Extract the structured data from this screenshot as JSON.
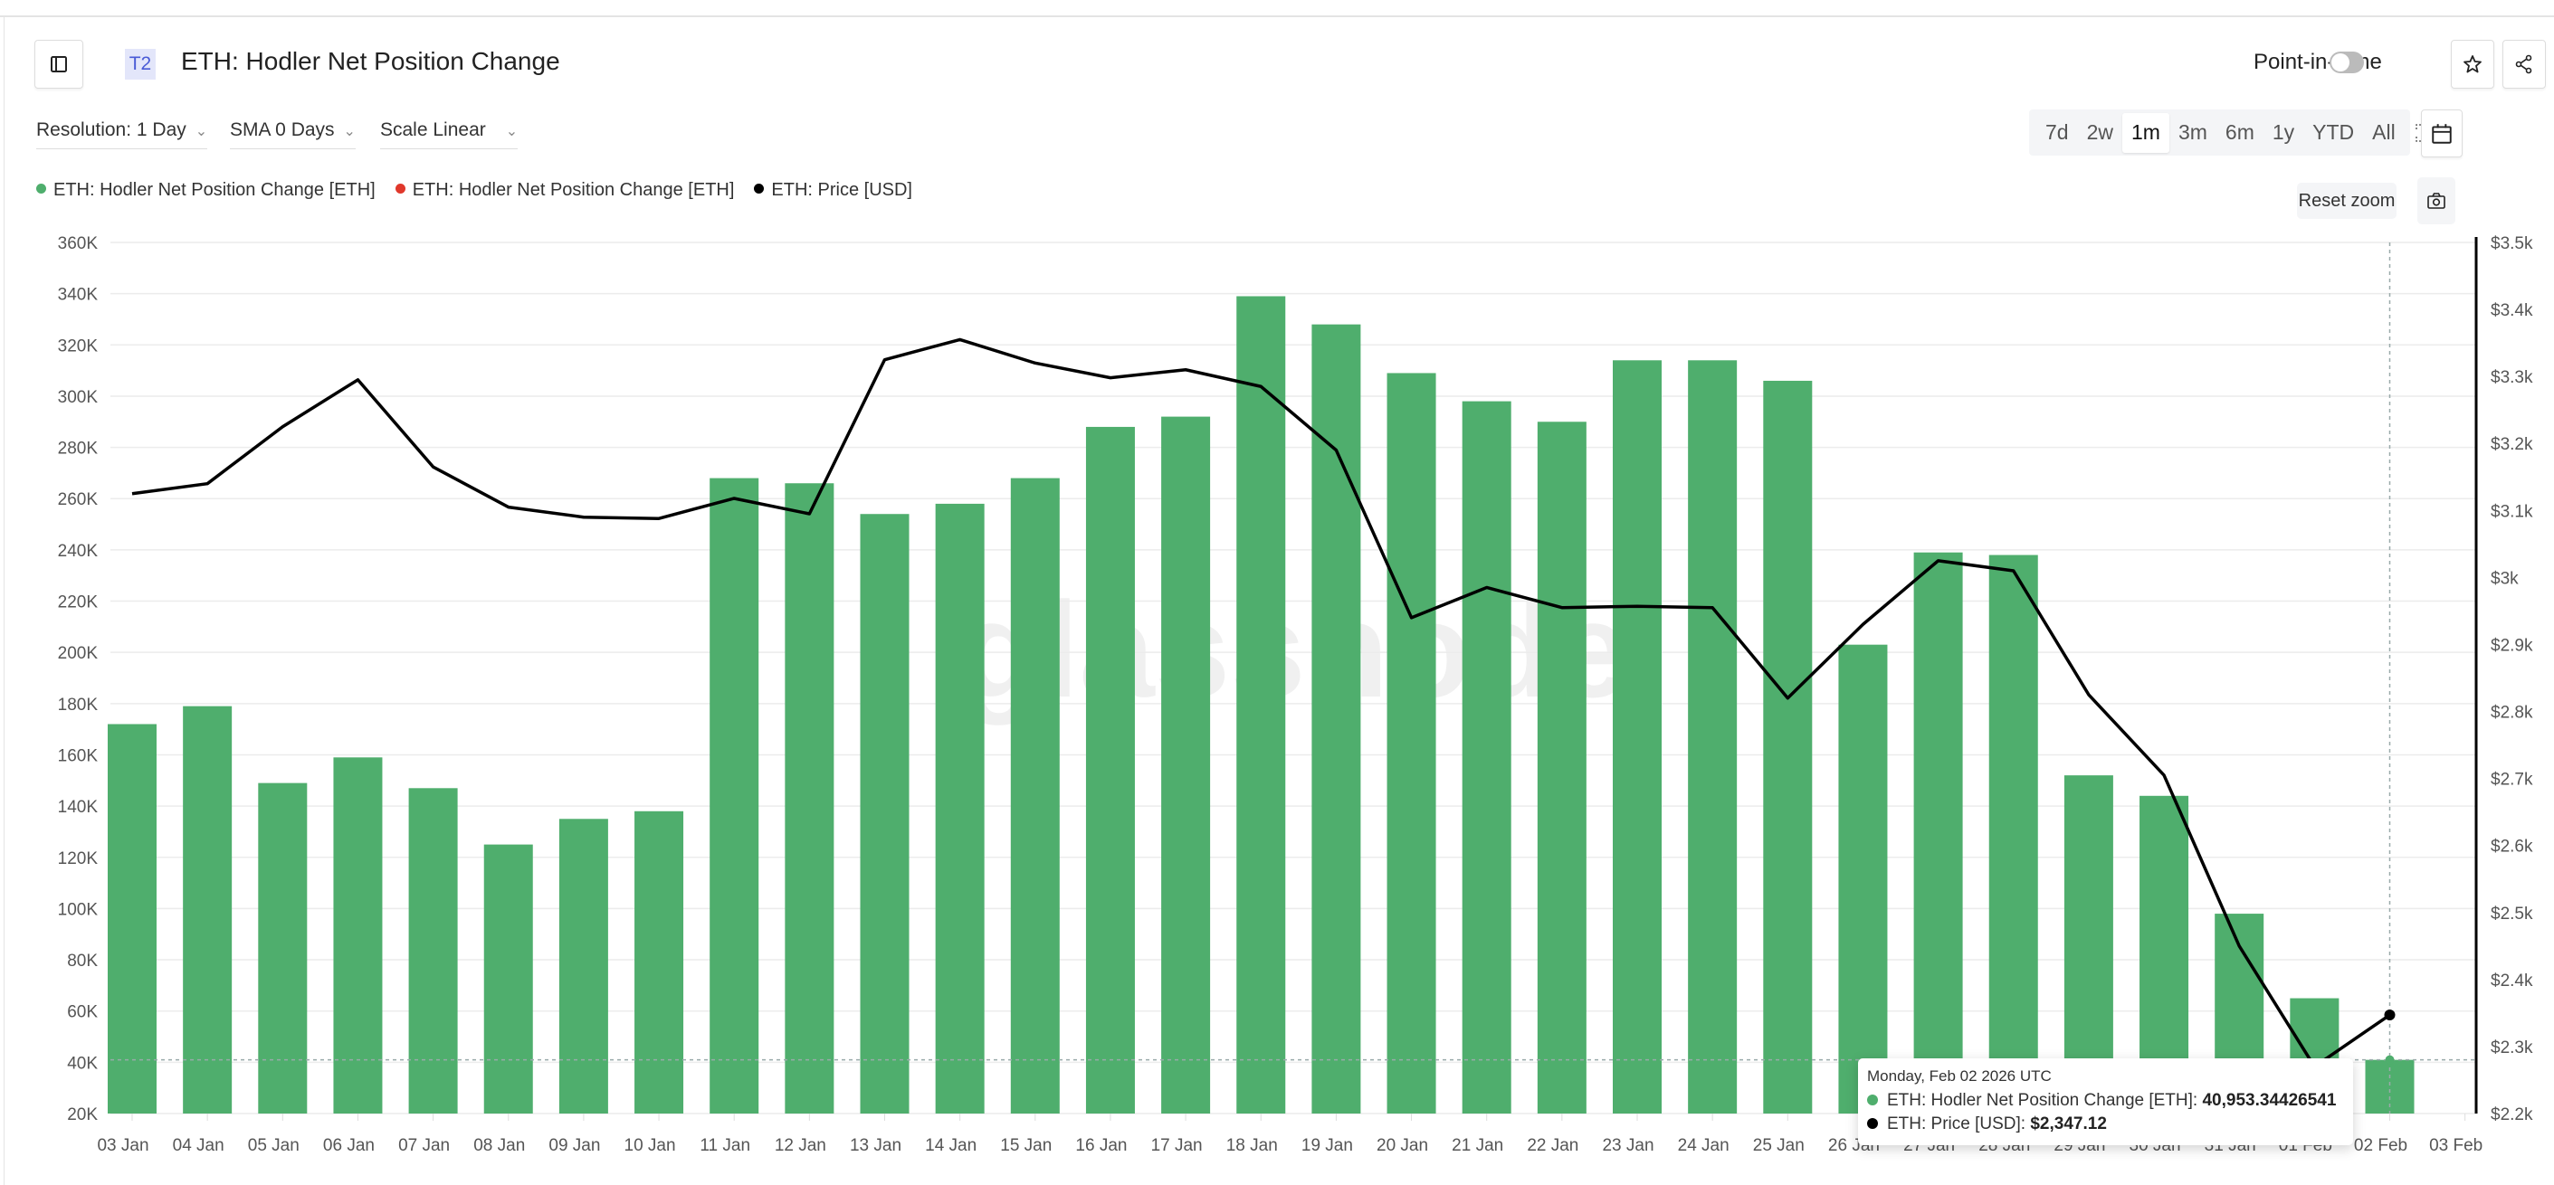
{
  "header": {
    "badge": "T2",
    "title": "ETH: Hodler Net Position Change",
    "point_in_time_label": "Point-in-Time",
    "point_in_time_on": false
  },
  "controls": {
    "resolution": "Resolution: 1 Day",
    "sma": "SMA 0 Days",
    "scale": "Scale Linear",
    "ranges": [
      "7d",
      "2w",
      "1m",
      "3m",
      "6m",
      "1y",
      "YTD",
      "All"
    ],
    "active_range": "1m",
    "reset_zoom": "Reset zoom"
  },
  "legend": [
    {
      "label": "ETH: Hodler Net Position Change [ETH]",
      "color": "#4fae6d"
    },
    {
      "label": "ETH: Hodler Net Position Change [ETH]",
      "color": "#e0382b"
    },
    {
      "label": "ETH: Price [USD]",
      "color": "#000000"
    }
  ],
  "tooltip": {
    "date": "Monday, Feb 02 2026 UTC",
    "series1_label": "ETH: Hodler Net Position Change [ETH]: ",
    "series1_value": "40,953.34426541",
    "series2_label": "ETH: Price [USD]: ",
    "series2_value": "$2,347.12"
  },
  "watermark": "glassnode",
  "chart_data": {
    "type": "bar",
    "categories": [
      "03 Jan",
      "04 Jan",
      "05 Jan",
      "06 Jan",
      "07 Jan",
      "08 Jan",
      "09 Jan",
      "10 Jan",
      "11 Jan",
      "12 Jan",
      "13 Jan",
      "14 Jan",
      "15 Jan",
      "16 Jan",
      "17 Jan",
      "18 Jan",
      "19 Jan",
      "20 Jan",
      "21 Jan",
      "22 Jan",
      "23 Jan",
      "24 Jan",
      "25 Jan",
      "26 Jan",
      "27 Jan",
      "28 Jan",
      "29 Jan",
      "30 Jan",
      "31 Jan",
      "01 Feb",
      "02 Feb"
    ],
    "x_tick_labels": [
      "03 Jan",
      "04 Jan",
      "05 Jan",
      "06 Jan",
      "07 Jan",
      "08 Jan",
      "09 Jan",
      "10 Jan",
      "11 Jan",
      "12 Jan",
      "13 Jan",
      "14 Jan",
      "15 Jan",
      "16 Jan",
      "17 Jan",
      "18 Jan",
      "19 Jan",
      "20 Jan",
      "21 Jan",
      "22 Jan",
      "23 Jan",
      "24 Jan",
      "25 Jan",
      "26 Jan",
      "27 Jan",
      "28 Jan",
      "29 Jan",
      "30 Jan",
      "31 Jan",
      "01 Feb",
      "02 Feb",
      "03 Feb"
    ],
    "series": [
      {
        "name": "ETH: Hodler Net Position Change [ETH]",
        "type": "bar",
        "axis": "left",
        "color": "#4fae6d",
        "values": [
          172000,
          179000,
          149000,
          159000,
          147000,
          125000,
          135000,
          138000,
          268000,
          266000,
          254000,
          258000,
          268000,
          288000,
          292000,
          339000,
          328000,
          309000,
          298000,
          290000,
          314000,
          314000,
          306000,
          203000,
          239000,
          238000,
          152000,
          144000,
          98000,
          65000,
          40953
        ]
      },
      {
        "name": "ETH: Price [USD]",
        "type": "line",
        "axis": "right",
        "color": "#000000",
        "values": [
          3125,
          3140,
          3225,
          3295,
          3165,
          3105,
          3090,
          3088,
          3118,
          3095,
          3325,
          3355,
          3320,
          3298,
          3310,
          3285,
          3190,
          2940,
          2985,
          2955,
          2957,
          2955,
          2820,
          2930,
          3025,
          3010,
          2825,
          2705,
          2450,
          2270,
          2347.12
        ]
      }
    ],
    "y_left": {
      "ylim": [
        20000,
        360000
      ],
      "ticks": [
        20000,
        40000,
        60000,
        80000,
        100000,
        120000,
        140000,
        160000,
        180000,
        200000,
        220000,
        240000,
        260000,
        280000,
        300000,
        320000,
        340000,
        360000
      ],
      "tick_labels": [
        "20K",
        "40K",
        "60K",
        "80K",
        "100K",
        "120K",
        "140K",
        "160K",
        "180K",
        "200K",
        "220K",
        "240K",
        "260K",
        "280K",
        "300K",
        "320K",
        "340K",
        "360K"
      ]
    },
    "y_right": {
      "ylim": [
        2200,
        3500
      ],
      "ticks": [
        2200,
        2300,
        2400,
        2500,
        2600,
        2700,
        2800,
        2900,
        3000,
        3100,
        3200,
        3300,
        3400,
        3500
      ],
      "tick_labels": [
        "$2.2k",
        "$2.3k",
        "$2.4k",
        "$2.5k",
        "$2.6k",
        "$2.7k",
        "$2.8k",
        "$2.9k",
        "$3k",
        "$3.1k",
        "$3.2k",
        "$3.3k",
        "$3.4k",
        "$3.5k"
      ]
    },
    "grid": true,
    "highlighted": "02 Feb"
  }
}
